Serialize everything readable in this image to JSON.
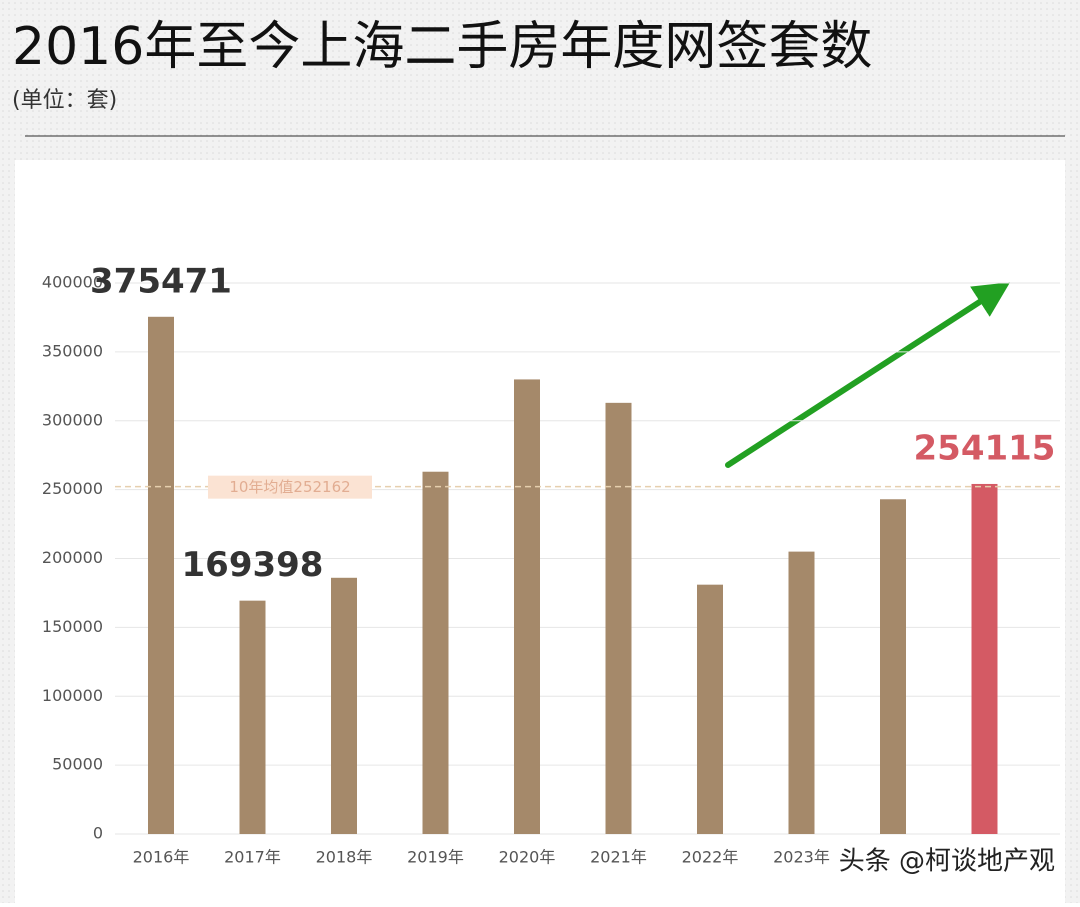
{
  "chart_data": {
    "type": "bar",
    "title": "2016年至今上海二手房年度网签套数",
    "subtitle": "(单位：套)",
    "categories": [
      "2016年",
      "2017年",
      "2018年",
      "2019年",
      "2020年",
      "2021年",
      "2022年",
      "2023年",
      null,
      null
    ],
    "values": [
      375471,
      169398,
      186000,
      263000,
      330000,
      313000,
      181000,
      205000,
      243000,
      254115
    ],
    "value_labels": [
      "375471",
      "169398",
      null,
      null,
      null,
      null,
      null,
      null,
      null,
      "254115"
    ],
    "colors": [
      "#a5896a",
      "#a5896a",
      "#a5896a",
      "#a5896a",
      "#a5896a",
      "#a5896a",
      "#a5896a",
      "#a5896a",
      "#a5896a",
      "#d45a64"
    ],
    "label_colors": [
      "#333333",
      "#333333",
      null,
      null,
      null,
      null,
      null,
      null,
      null,
      "#d45a64"
    ],
    "average": {
      "value": 252162,
      "label": "10年均值252162"
    },
    "ylim": [
      0,
      400000
    ],
    "yticks": [
      0,
      50000,
      100000,
      150000,
      200000,
      250000,
      300000,
      350000,
      400000
    ],
    "grid": true,
    "watermark": "头条 @柯谈地产观"
  }
}
